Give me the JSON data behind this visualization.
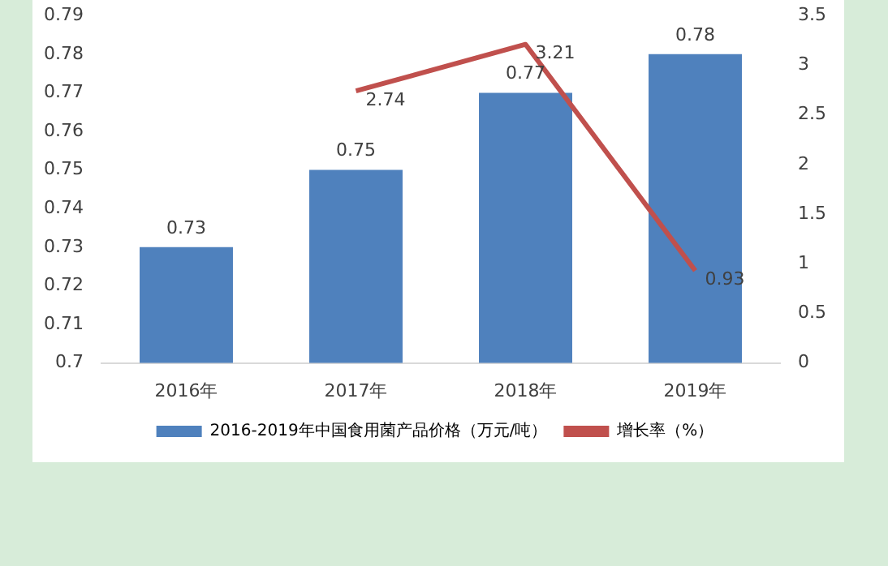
{
  "chart_data": {
    "type": "bar",
    "categories": [
      "2016年",
      "2017年",
      "2018年",
      "2019年"
    ],
    "series": [
      {
        "name": "2016-2019年中国食用菌产品价格（万元/吨）",
        "color": "#4f81bd",
        "values": [
          0.73,
          0.75,
          0.77,
          0.78
        ]
      },
      {
        "name": "增长率（%）",
        "type": "line",
        "axis": "y2",
        "color": "#c0504d",
        "values": [
          null,
          2.74,
          3.21,
          0.93
        ]
      }
    ],
    "ylim": [
      0.7,
      0.79
    ],
    "yticks": [
      0.7,
      0.71,
      0.72,
      0.73,
      0.74,
      0.75,
      0.76,
      0.77,
      0.78,
      0.79
    ],
    "y2lim": [
      0,
      3.5
    ],
    "y2ticks": [
      0,
      0.5,
      1,
      1.5,
      2,
      2.5,
      3,
      3.5
    ],
    "data_labels": true,
    "grid": false,
    "legend": "bottom",
    "marker": "none"
  }
}
